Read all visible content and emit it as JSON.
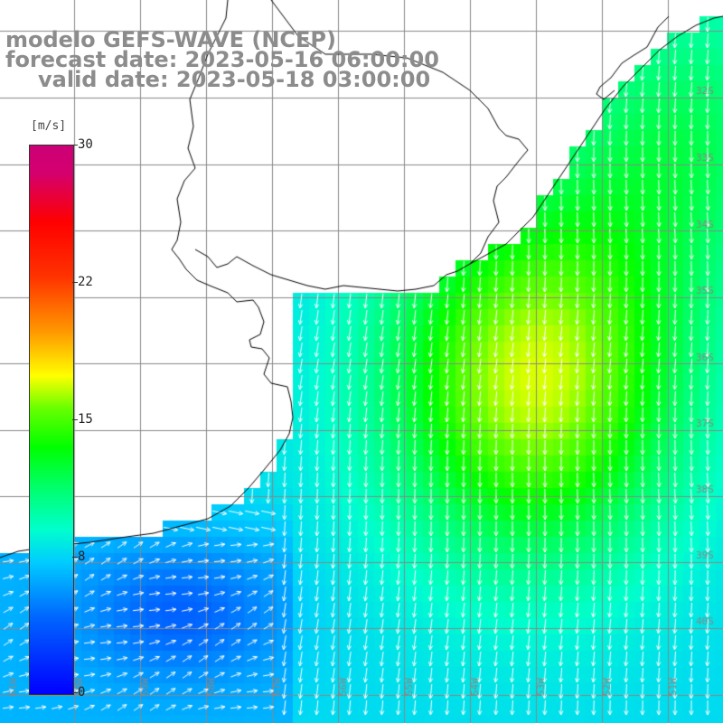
{
  "title": {
    "line1": "modelo GEFS-WAVE (NCEP)",
    "line2": "forecast date: 2023-05-16 06:00:00",
    "line3": "valid date: 2023-05-18 03:00:00"
  },
  "colorbar": {
    "unit": "[m/s]",
    "ticks": [
      "30",
      "22",
      "15",
      "8",
      "0"
    ],
    "tick_values": [
      30,
      22,
      15,
      8,
      0
    ],
    "range": [
      0,
      30
    ],
    "colors": [
      "#0000ff",
      "#00ccff",
      "#00ff00",
      "#ffff00",
      "#ff0000",
      "#cc0077"
    ]
  },
  "map": {
    "lat_labels": [
      "32S",
      "33S",
      "34S",
      "35S",
      "36S",
      "37S",
      "38S",
      "39S",
      "40S"
    ],
    "lon_labels": [
      "61W",
      "60W",
      "59W",
      "58W",
      "57W",
      "56W",
      "55W",
      "54W",
      "53W",
      "52W",
      "51W"
    ],
    "land_color": "#ffffff",
    "coast_color": "#000000",
    "grid_color": "#888888",
    "arrow_color": "#ffffff",
    "icons": [
      "wind-arrow-icon"
    ]
  }
}
